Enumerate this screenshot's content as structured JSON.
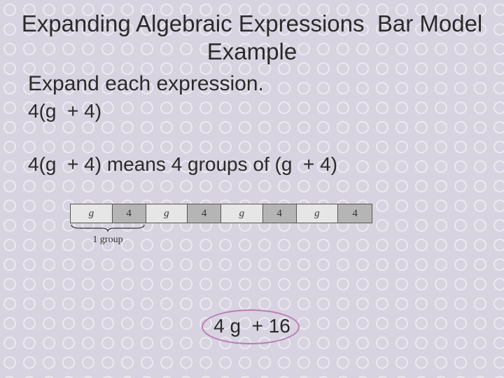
{
  "title": "Expanding Algebraic Expressions  Bar Model Example",
  "instruction": "Expand each expression.",
  "expression": "4(g  + 4)",
  "meaning": "4(g  + 4) means 4 groups of (g  + 4)",
  "bar_model": {
    "cells": [
      {
        "label": "g",
        "type": "g"
      },
      {
        "label": "4",
        "type": "n"
      },
      {
        "label": "g",
        "type": "g"
      },
      {
        "label": "4",
        "type": "n"
      },
      {
        "label": "g",
        "type": "g"
      },
      {
        "label": "4",
        "type": "n"
      },
      {
        "label": "g",
        "type": "g"
      },
      {
        "label": "4",
        "type": "n"
      }
    ],
    "group_label": "1 group",
    "cell_g_bg": "#e6e6e6",
    "cell_n_bg": "#b5b5b5",
    "border_color": "#555555"
  },
  "answer": "4 g  + 16",
  "answer_circle_color": "#b87db8",
  "background_color": "#d8d3e0",
  "text_color": "#2a2a2a",
  "title_fontsize": 33,
  "body_fontsize": 28
}
